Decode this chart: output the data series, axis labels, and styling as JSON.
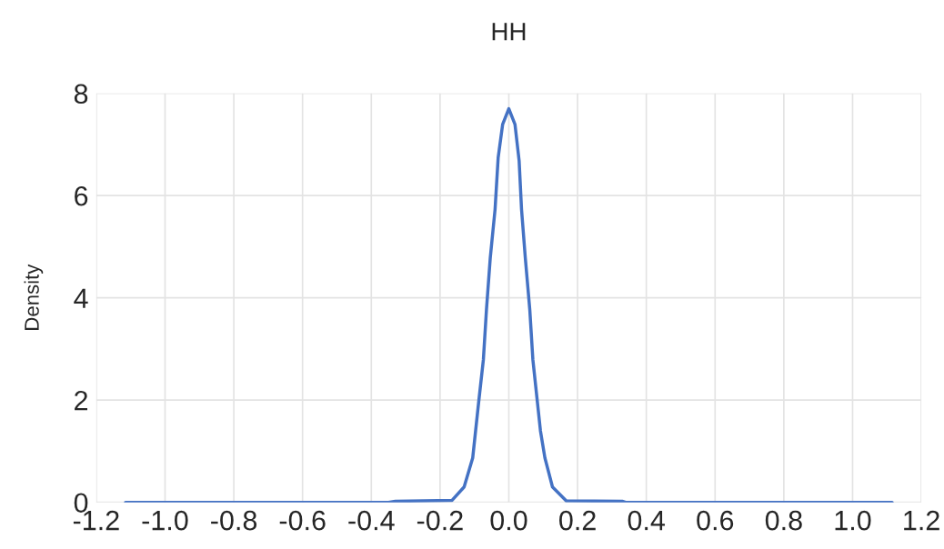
{
  "chart_data": {
    "type": "line",
    "title": "HH",
    "ylabel": "Density",
    "series": [
      {
        "color": "#4472c4",
        "x": [
          -1.115,
          -0.35,
          -0.33,
          -0.165,
          -0.13,
          -0.105,
          -0.088,
          -0.074,
          -0.065,
          -0.054,
          -0.04,
          -0.031,
          -0.018,
          0.0,
          0.018,
          0.03,
          0.037,
          0.048,
          0.061,
          0.07,
          0.092,
          0.105,
          0.127,
          0.167,
          0.33,
          0.34,
          1.115
        ],
        "values": [
          0.0,
          0.0,
          0.02,
          0.04,
          0.3,
          0.87,
          1.94,
          2.79,
          3.77,
          4.78,
          5.73,
          6.74,
          7.39,
          7.7,
          7.39,
          6.68,
          5.73,
          4.78,
          3.77,
          2.79,
          1.4,
          0.87,
          0.3,
          0.03,
          0.02,
          0.0,
          0.0
        ]
      }
    ],
    "xlim": [
      -1.2,
      1.2
    ],
    "xticks": [
      {
        "value": -1.2,
        "label": "-1.2"
      },
      {
        "value": -1.0,
        "label": "-1.0"
      },
      {
        "value": -0.8,
        "label": "-0.8"
      },
      {
        "value": -0.6,
        "label": "-0.6"
      },
      {
        "value": -0.4,
        "label": "-0.4"
      },
      {
        "value": -0.2,
        "label": "-0.2"
      },
      {
        "value": 0.0,
        "label": "0.0"
      },
      {
        "value": 0.2,
        "label": "0.2"
      },
      {
        "value": 0.4,
        "label": "0.4"
      },
      {
        "value": 0.6,
        "label": "0.6"
      },
      {
        "value": 0.8,
        "label": "0.8"
      },
      {
        "value": 1.0,
        "label": "1.0"
      },
      {
        "value": 1.2,
        "label": "1.2"
      }
    ],
    "ylim": [
      0,
      8
    ],
    "yticks": [
      0,
      2,
      4,
      6,
      8
    ],
    "grid": true,
    "line_style": "solid",
    "marker": "none",
    "legend": false
  }
}
